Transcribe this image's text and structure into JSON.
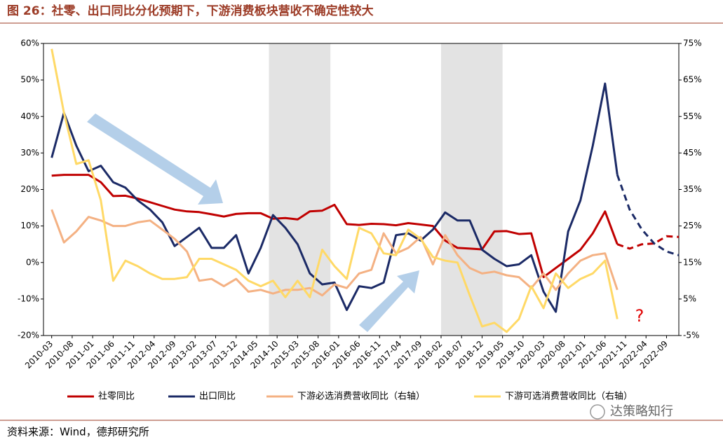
{
  "chart_data": {
    "type": "line",
    "title": "图 26：社零、出口同比分化预期下，下游消费板块营收不确定性较大",
    "source": "资料来源：Wind，德邦研究所",
    "watermark": "达策略知行",
    "annotation": "?",
    "x": [
      "2010-03",
      "2010-06",
      "2010-09",
      "2010-12",
      "2011-03",
      "2011-06",
      "2011-09",
      "2011-12",
      "2012-03",
      "2012-06",
      "2012-09",
      "2012-12",
      "2013-03",
      "2013-06",
      "2013-09",
      "2013-12",
      "2014-03",
      "2014-06",
      "2014-09",
      "2014-12",
      "2015-03",
      "2015-06",
      "2015-09",
      "2015-12",
      "2016-03",
      "2016-06",
      "2016-09",
      "2016-12",
      "2017-03",
      "2017-06",
      "2017-09",
      "2017-12",
      "2018-03",
      "2018-06",
      "2018-09",
      "2018-12",
      "2019-03",
      "2019-06",
      "2019-09",
      "2019-12",
      "2020-03",
      "2020-06",
      "2020-09",
      "2020-12",
      "2021-03",
      "2021-06",
      "2021-09",
      "2021-12",
      "2022-03",
      "2022-06",
      "2022-09",
      "2022-12"
    ],
    "xlim": [
      "2010-01",
      "2022-12"
    ],
    "xticks": [
      "2010-03",
      "2010-08",
      "2011-01",
      "2011-06",
      "2011-11",
      "2012-04",
      "2012-09",
      "2013-02",
      "2013-07",
      "2013-12",
      "2014-05",
      "2014-10",
      "2015-03",
      "2015-08",
      "2016-01",
      "2016-06",
      "2016-11",
      "2017-04",
      "2017-09",
      "2018-02",
      "2018-07",
      "2018-12",
      "2019-05",
      "2019-10",
      "2020-03",
      "2020-08",
      "2021-01",
      "2021-06",
      "2021-11",
      "2022-04",
      "2022-09"
    ],
    "ylim": [
      -20,
      60
    ],
    "yticks": [
      {
        "value": -20,
        "label": "-20%"
      },
      {
        "value": -10,
        "label": "-10%"
      },
      {
        "value": 0,
        "label": "0%"
      },
      {
        "value": 10,
        "label": "10%"
      },
      {
        "value": 20,
        "label": "20%"
      },
      {
        "value": 30,
        "label": "30%"
      },
      {
        "value": 40,
        "label": "40%"
      },
      {
        "value": 50,
        "label": "50%"
      },
      {
        "value": 60,
        "label": "60%"
      }
    ],
    "y2lim": [
      -5,
      75
    ],
    "y2ticks": [
      {
        "value": -5,
        "label": "-5%"
      },
      {
        "value": 5,
        "label": "5%"
      },
      {
        "value": 15,
        "label": "15%"
      },
      {
        "value": 25,
        "label": "25%"
      },
      {
        "value": 35,
        "label": "35%"
      },
      {
        "value": 45,
        "label": "45%"
      },
      {
        "value": 55,
        "label": "55%"
      },
      {
        "value": 65,
        "label": "65%"
      },
      {
        "value": 75,
        "label": "75%"
      }
    ],
    "shaded_ranges": [
      [
        "2014-08",
        "2015-11"
      ],
      [
        "2018-02",
        "2019-05"
      ]
    ],
    "legend_position": "bottom",
    "series": [
      {
        "name": "社零同比",
        "color": "#c00000",
        "dashed_from": 47,
        "values": [
          23.8,
          24,
          24,
          24,
          22,
          18.2,
          18.3,
          17.5,
          16.5,
          15.5,
          14.5,
          14,
          13.8,
          13.2,
          12.6,
          13.3,
          13.5,
          13.5,
          12,
          12.2,
          11.8,
          14,
          14.2,
          15.8,
          10.5,
          10.3,
          10.6,
          10.5,
          10.2,
          10.8,
          10.4,
          10,
          6,
          4,
          3.8,
          3.6,
          8.5,
          8.6,
          7.8,
          8,
          -4,
          -1.5,
          1,
          3.5,
          8,
          14,
          5,
          3.8,
          5,
          5.2,
          7.2,
          7
        ]
      },
      {
        "name": "出口同比",
        "color": "#1b2a66",
        "dashed_from": 47,
        "values": [
          28.7,
          41,
          32,
          25,
          26.5,
          22,
          20.5,
          17,
          14.5,
          11,
          4.5,
          7,
          9.5,
          4,
          4,
          7.5,
          -3,
          4,
          13,
          9.5,
          5,
          -3,
          -6,
          -5.5,
          -13,
          -6.5,
          -7,
          -5.5,
          7.5,
          8,
          6,
          9,
          13.7,
          11.5,
          11.5,
          3.5,
          1,
          -1,
          -0.5,
          2,
          -8,
          -13.5,
          8.5,
          17,
          32,
          49,
          24,
          14.5,
          9,
          5.2,
          3,
          2
        ]
      },
      {
        "name": "下游必选消费营收同比（右轴）",
        "color": "#f4b183",
        "axis": "y2",
        "values": [
          29.5,
          20.5,
          23.5,
          27.5,
          26.5,
          25,
          25,
          26,
          26.5,
          24,
          21.5,
          18,
          10,
          10.5,
          8.5,
          10.5,
          7,
          7.5,
          6.5,
          7.5,
          7.5,
          8,
          6,
          9,
          8,
          12,
          13,
          23,
          17.5,
          19,
          22,
          14.5,
          22.5,
          17,
          13.5,
          12,
          12.5,
          11.5,
          11,
          8,
          12,
          7.5,
          12,
          15.5,
          17,
          17.5,
          7.5,
          null,
          null,
          null,
          null,
          null
        ]
      },
      {
        "name": "下游可选消费营收同比（右轴）",
        "color": "#ffd966",
        "axis": "y2",
        "values": [
          73.5,
          56,
          42,
          43,
          32,
          10,
          15.5,
          14,
          12,
          10.5,
          10.5,
          11,
          16,
          16,
          14.5,
          13,
          10,
          8.5,
          10,
          5.5,
          10,
          5.5,
          18.5,
          14,
          10.5,
          24.5,
          23,
          17.5,
          17,
          24,
          21.5,
          16.5,
          15.5,
          15,
          6,
          -2.5,
          -1.5,
          -4,
          -0.5,
          8.5,
          2.5,
          12,
          8,
          10.5,
          12,
          15.5,
          -0.5,
          null,
          null,
          null,
          null,
          null
        ]
      }
    ]
  }
}
